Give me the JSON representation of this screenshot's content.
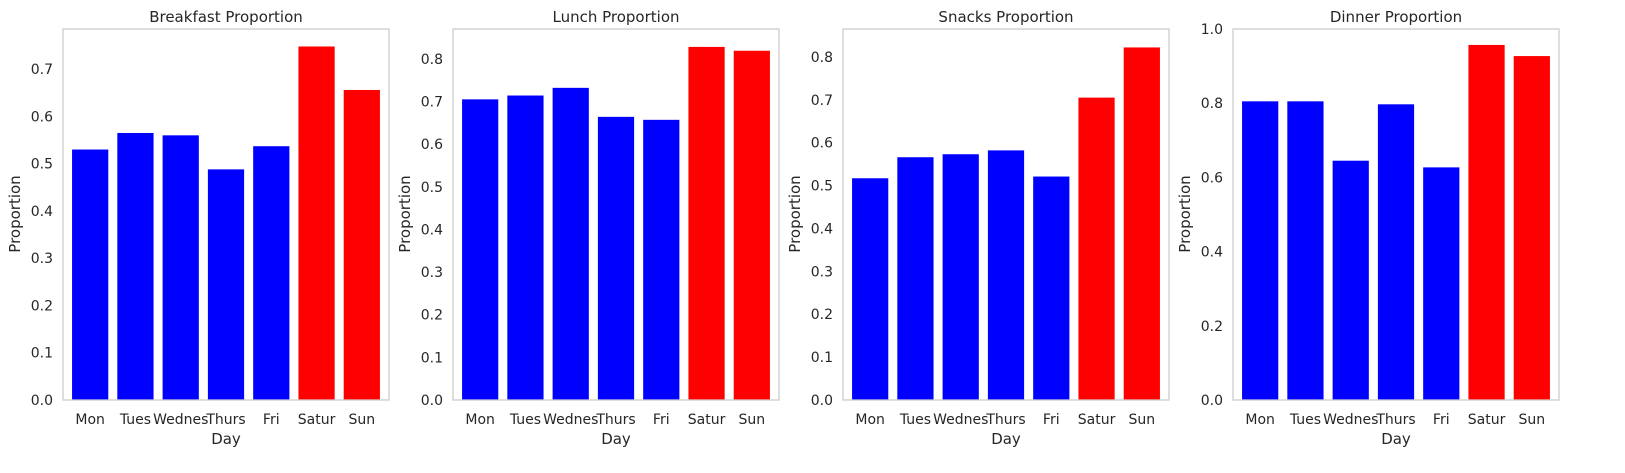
{
  "colors": {
    "weekday": "#0000ff",
    "weekend": "#ff0000",
    "frame": "#cccccc",
    "text": "#262626"
  },
  "chart_data": [
    {
      "type": "bar",
      "title": "Breakfast Proportion",
      "xlabel": "Day",
      "ylabel": "Proportion",
      "categories": [
        "Mon",
        "Tues",
        "Wednes",
        "Thurs",
        "Fri",
        "Satur",
        "Sun"
      ],
      "values": [
        0.53,
        0.565,
        0.56,
        0.488,
        0.537,
        0.748,
        0.656
      ],
      "bar_colors": [
        "#0000ff",
        "#0000ff",
        "#0000ff",
        "#0000ff",
        "#0000ff",
        "#ff0000",
        "#ff0000"
      ],
      "ylim": [
        0,
        0.785
      ],
      "yticks": [
        0.0,
        0.1,
        0.2,
        0.3,
        0.4,
        0.5,
        0.6,
        0.7
      ],
      "ytick_labels": [
        "0.0",
        "0.1",
        "0.2",
        "0.3",
        "0.4",
        "0.5",
        "0.6",
        "0.7"
      ],
      "grid": false
    },
    {
      "type": "bar",
      "title": "Lunch Proportion",
      "xlabel": "Day",
      "ylabel": "Proportion",
      "categories": [
        "Mon",
        "Tues",
        "Wednes",
        "Thurs",
        "Fri",
        "Satur",
        "Sun"
      ],
      "values": [
        0.705,
        0.714,
        0.732,
        0.664,
        0.657,
        0.828,
        0.819
      ],
      "bar_colors": [
        "#0000ff",
        "#0000ff",
        "#0000ff",
        "#0000ff",
        "#0000ff",
        "#ff0000",
        "#ff0000"
      ],
      "ylim": [
        0,
        0.87
      ],
      "yticks": [
        0.0,
        0.1,
        0.2,
        0.3,
        0.4,
        0.5,
        0.6,
        0.7,
        0.8
      ],
      "ytick_labels": [
        "0.0",
        "0.1",
        "0.2",
        "0.3",
        "0.4",
        "0.5",
        "0.6",
        "0.7",
        "0.8"
      ],
      "grid": false
    },
    {
      "type": "bar",
      "title": "Snacks Proportion",
      "xlabel": "Day",
      "ylabel": "Proportion",
      "categories": [
        "Mon",
        "Tues",
        "Wednes",
        "Thurs",
        "Fri",
        "Satur",
        "Sun"
      ],
      "values": [
        0.517,
        0.566,
        0.573,
        0.582,
        0.521,
        0.705,
        0.822
      ],
      "bar_colors": [
        "#0000ff",
        "#0000ff",
        "#0000ff",
        "#0000ff",
        "#0000ff",
        "#ff0000",
        "#ff0000"
      ],
      "ylim": [
        0,
        0.865
      ],
      "yticks": [
        0.0,
        0.1,
        0.2,
        0.3,
        0.4,
        0.5,
        0.6,
        0.7,
        0.8
      ],
      "ytick_labels": [
        "0.0",
        "0.1",
        "0.2",
        "0.3",
        "0.4",
        "0.5",
        "0.6",
        "0.7",
        "0.8"
      ],
      "grid": false
    },
    {
      "type": "bar",
      "title": "Dinner Proportion",
      "xlabel": "Day",
      "ylabel": "Proportion",
      "categories": [
        "Mon",
        "Tues",
        "Wednes",
        "Thurs",
        "Fri",
        "Satur",
        "Sun"
      ],
      "values": [
        0.805,
        0.805,
        0.645,
        0.797,
        0.627,
        0.957,
        0.927
      ],
      "bar_colors": [
        "#0000ff",
        "#0000ff",
        "#0000ff",
        "#0000ff",
        "#0000ff",
        "#ff0000",
        "#ff0000"
      ],
      "ylim": [
        0,
        1.0
      ],
      "yticks": [
        0.0,
        0.2,
        0.4,
        0.6,
        0.8,
        1.0
      ],
      "ytick_labels": [
        "0.0",
        "0.2",
        "0.4",
        "0.6",
        "0.8",
        "1.0"
      ],
      "grid": false
    }
  ]
}
